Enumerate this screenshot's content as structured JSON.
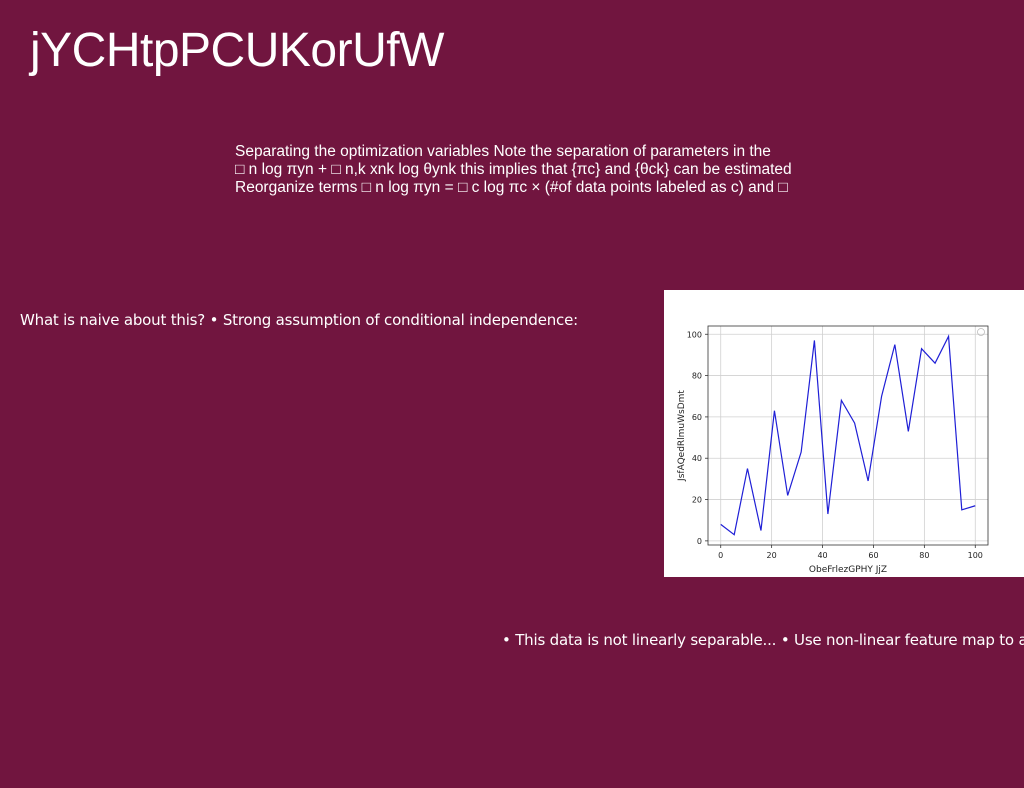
{
  "slide": {
    "title": "jYCHtpPCUKorUfW",
    "paragraph_lines": [
      "Separating the optimization variables Note the separation of parameters in the",
      "□ n log πyn + □ n,k xnk log θynk this implies that {πc} and {θck} can be estimated",
      "Reorganize terms □ n log πyn = □ c log πc × (#of data points labeled as c) and □"
    ],
    "naive_text": "What is naive about this? • Strong assumption of conditional independence:",
    "separable_text": "• This data is not linearly separable... • Use non-linear feature map to add"
  },
  "colors": {
    "background": "#71153f",
    "text": "#ffffff",
    "line": "#1f1fd6"
  },
  "chart_data": {
    "type": "line",
    "xlabel": "ObeFrlezGPHY JjZ",
    "ylabel": "JsfAQedRlmuWsDmt",
    "xlim": [
      -5,
      105
    ],
    "ylim": [
      -2,
      104
    ],
    "xticks": [
      0,
      20,
      40,
      60,
      80,
      100
    ],
    "yticks": [
      0,
      20,
      40,
      60,
      80,
      100
    ],
    "grid": true,
    "legend": "top-right",
    "series": [
      {
        "x": [
          0,
          5.3,
          10.5,
          15.8,
          21.1,
          26.3,
          31.6,
          36.8,
          42.1,
          47.4,
          52.6,
          57.9,
          63.2,
          68.4,
          73.7,
          78.9,
          84.2,
          89.5,
          94.7,
          100
        ],
        "y": [
          8,
          3,
          35,
          5,
          63,
          22,
          43,
          97,
          13,
          68,
          57,
          29,
          70,
          95,
          53,
          93,
          86,
          99,
          15,
          17
        ]
      }
    ]
  }
}
